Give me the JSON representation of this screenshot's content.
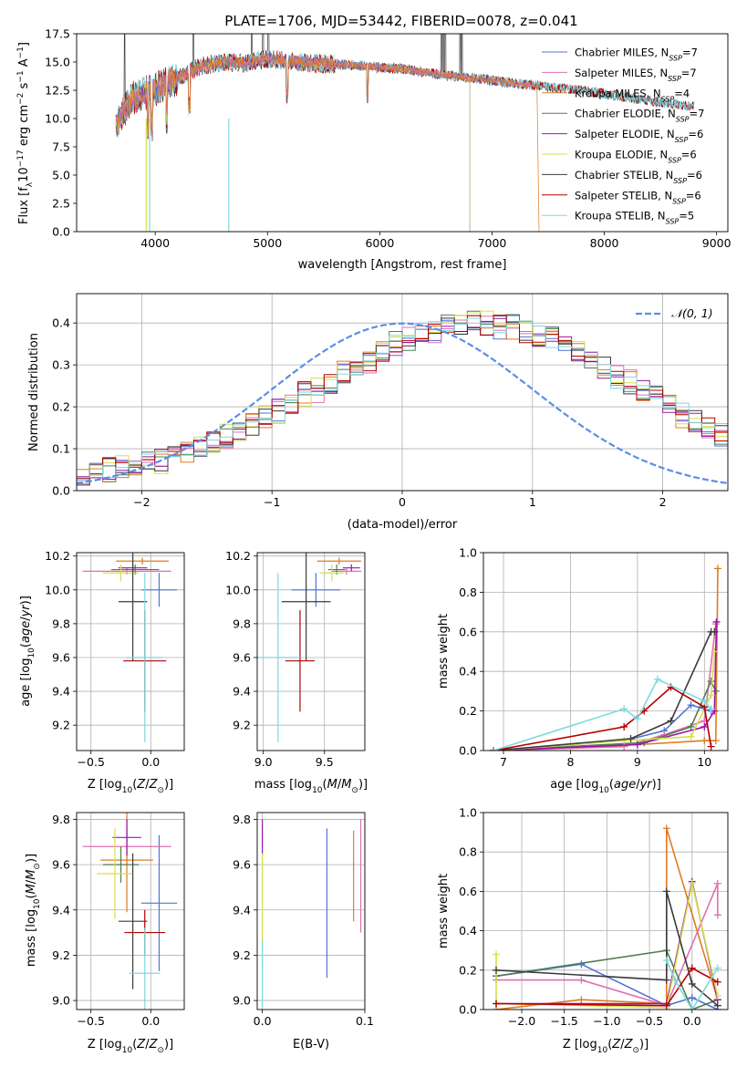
{
  "page_title": "PLATE=1706, MJD=53442, FIBERID=0078, z=0.041",
  "colors": {
    "Chabrier MILES": "#4f73d6",
    "Salpeter MILES": "#e06fb0",
    "Kroupa MILES": "#e07b1f",
    "Chabrier ELODIE": "#4f7d55",
    "Salpeter ELODIE": "#9b16a8",
    "Kroupa ELODIE": "#d4e04a",
    "Chabrier STELIB": "#3b3b3b",
    "Salpeter STELIB": "#b30000",
    "Kroupa STELIB": "#7fd8e0",
    "normal": "#5b8ee6"
  },
  "chart_data": [
    {
      "id": "spectrum",
      "type": "line",
      "title": "PLATE=1706, MJD=53442, FIBERID=0078, z=0.041",
      "xlabel": "wavelength [Angstrom, rest frame]",
      "ylabel": "Flux [f_λ 10^-17 erg cm^-2 s^-1 A^-1]",
      "xlim": [
        3300,
        9100
      ],
      "ylim": [
        0,
        17.5
      ],
      "xticks": [
        4000,
        5000,
        6000,
        7000,
        8000,
        9000
      ],
      "yticks": [
        0.0,
        2.5,
        5.0,
        7.5,
        10.0,
        12.5,
        15.0,
        17.5
      ],
      "grid": false,
      "legend_position": "top-right",
      "x": [
        3650,
        3800,
        4000,
        4200,
        4400,
        4600,
        4800,
        5000,
        5200,
        5400,
        5600,
        5800,
        6000,
        6200,
        6400,
        6600,
        6800,
        7000,
        7200,
        7400,
        7600,
        7800,
        8000,
        8200,
        8400,
        8600,
        8800
      ],
      "y": [
        9.5,
        11.8,
        12.6,
        13.6,
        14.6,
        15.0,
        14.9,
        15.3,
        15.1,
        14.9,
        14.8,
        14.7,
        14.5,
        14.4,
        14.1,
        13.8,
        13.6,
        13.4,
        13.1,
        12.9,
        12.7,
        12.5,
        12.2,
        11.9,
        11.6,
        11.3,
        11.0
      ],
      "series": [
        {
          "name": "Chabrier MILES, N_SSP=7",
          "label_main": "Chabrier MILES, N",
          "label_sub": "SSP",
          "label_end": "=7",
          "xmax": 7400
        },
        {
          "name": "Salpeter MILES, N_SSP=7",
          "label_main": "Salpeter MILES, N",
          "label_sub": "SSP",
          "label_end": "=7",
          "xmax": 7400
        },
        {
          "name": "Kroupa MILES, N_SSP=4",
          "label_main": "Kroupa MILES, N",
          "label_sub": "SSP",
          "label_end": "=4",
          "xmax": 7400
        },
        {
          "name": "Chabrier ELODIE, N_SSP=7",
          "label_main": "Chabrier ELODIE, N",
          "label_sub": "SSP",
          "label_end": "=7",
          "xmax": 6800
        },
        {
          "name": "Salpeter ELODIE, N_SSP=6",
          "label_main": "Salpeter ELODIE, N",
          "label_sub": "SSP",
          "label_end": "=6",
          "xmax": 6800
        },
        {
          "name": "Kroupa ELODIE, N_SSP=6",
          "label_main": "Kroupa ELODIE, N",
          "label_sub": "SSP",
          "label_end": "=6",
          "xmax": 6800
        },
        {
          "name": "Chabrier STELIB, N_SSP=6",
          "label_main": "Chabrier STELIB, N",
          "label_sub": "SSP",
          "label_end": "=6",
          "xmax": 8800
        },
        {
          "name": "Salpeter STELIB, N_SSP=6",
          "label_main": "Salpeter STELIB, N",
          "label_sub": "SSP",
          "label_end": "=6",
          "xmax": 8800
        },
        {
          "name": "Kroupa STELIB, N_SSP=5",
          "label_main": "Kroupa STELIB, N",
          "label_sub": "SSP",
          "label_end": "=5",
          "xmax": 8800
        }
      ]
    },
    {
      "id": "residuals",
      "type": "histogram",
      "xlabel": "(data-model)/error",
      "ylabel": "Normed distribution",
      "xlim": [
        -2.5,
        2.5
      ],
      "ylim": [
        0,
        0.47
      ],
      "xticks": [
        -2,
        -1,
        0,
        1,
        2
      ],
      "xtick_labels": [
        "−2",
        "−1",
        "0",
        "1",
        "2"
      ],
      "yticks": [
        0.0,
        0.1,
        0.2,
        0.3,
        0.4
      ],
      "grid": true,
      "legend_position": "top-right",
      "legend_label": "N(0,1)",
      "bin_width": 0.1,
      "bin_start": -2.5,
      "base_hist": [
        0.04,
        0.05,
        0.05,
        0.06,
        0.06,
        0.07,
        0.07,
        0.08,
        0.09,
        0.1,
        0.11,
        0.13,
        0.14,
        0.16,
        0.18,
        0.19,
        0.21,
        0.23,
        0.24,
        0.26,
        0.28,
        0.3,
        0.31,
        0.33,
        0.35,
        0.36,
        0.37,
        0.38,
        0.39,
        0.4,
        0.4,
        0.4,
        0.39,
        0.39,
        0.38,
        0.37,
        0.36,
        0.34,
        0.33,
        0.31,
        0.29,
        0.27,
        0.26,
        0.24,
        0.22,
        0.2,
        0.18,
        0.17,
        0.15,
        0.13,
        0.12,
        0.1,
        0.09,
        0.08,
        0.07,
        0.06,
        0.05,
        0.04,
        0.04,
        0.03
      ],
      "normal_curve": "N(0,1)"
    },
    {
      "id": "age_vs_Z",
      "type": "errorbar",
      "xlabel": "Z [log10(Z/Z⊙)]",
      "ylabel": "age [log10(age/yr)]",
      "xlim": [
        -0.62,
        0.28
      ],
      "ylim": [
        9.05,
        10.22
      ],
      "xticks": [
        -0.5,
        0.0
      ],
      "xtick_labels": [
        "−0.5",
        "0.0"
      ],
      "yticks": [
        9.2,
        9.4,
        9.6,
        9.8,
        10.0,
        10.2
      ],
      "grid": true,
      "points": [
        {
          "series": "Chabrier MILES",
          "x": 0.07,
          "y": 10.0,
          "xerr": 0.15,
          "yerr": 0.1
        },
        {
          "series": "Salpeter MILES",
          "x": -0.2,
          "y": 10.11,
          "xerr": 0.37,
          "yerr": 0.02
        },
        {
          "series": "Kroupa MILES",
          "x": -0.07,
          "y": 10.17,
          "xerr": 0.22,
          "yerr": 0.02
        },
        {
          "series": "Chabrier ELODIE",
          "x": -0.13,
          "y": 10.12,
          "xerr": 0.2,
          "yerr": 0.03
        },
        {
          "series": "Salpeter ELODIE",
          "x": -0.15,
          "y": 10.13,
          "xerr": 0.12,
          "yerr": 0.02
        },
        {
          "series": "Kroupa ELODIE",
          "x": -0.25,
          "y": 10.1,
          "xerr": 0.15,
          "yerr": 0.05
        },
        {
          "series": "Chabrier STELIB",
          "x": -0.15,
          "y": 9.93,
          "xerr": 0.12,
          "yerr": 0.35
        },
        {
          "series": "Salpeter STELIB",
          "x": -0.05,
          "y": 9.58,
          "xerr": 0.18,
          "yerr": 0.3
        },
        {
          "series": "Kroupa STELIB",
          "x": -0.05,
          "y": 9.6,
          "xerr": 0.15,
          "yerr": 0.5
        }
      ]
    },
    {
      "id": "age_vs_mass",
      "type": "errorbar",
      "xlabel": "mass [log10(M/M⊙)]",
      "xlim": [
        8.95,
        9.83
      ],
      "ylim": [
        9.05,
        10.22
      ],
      "xticks": [
        9.0,
        9.5
      ],
      "yticks": [
        9.2,
        9.4,
        9.6,
        9.8,
        10.0,
        10.2
      ],
      "grid": true,
      "points": [
        {
          "series": "Chabrier MILES",
          "x": 9.43,
          "y": 10.0,
          "xerr": 0.2,
          "yerr": 0.1
        },
        {
          "series": "Salpeter MILES",
          "x": 9.68,
          "y": 10.11,
          "xerr": 0.12,
          "yerr": 0.02
        },
        {
          "series": "Kroupa MILES",
          "x": 9.62,
          "y": 10.17,
          "xerr": 0.18,
          "yerr": 0.02
        },
        {
          "series": "Chabrier ELODIE",
          "x": 9.6,
          "y": 10.12,
          "xerr": 0.07,
          "yerr": 0.03
        },
        {
          "series": "Salpeter ELODIE",
          "x": 9.72,
          "y": 10.13,
          "xerr": 0.07,
          "yerr": 0.02
        },
        {
          "series": "Kroupa ELODIE",
          "x": 9.56,
          "y": 10.1,
          "xerr": 0.1,
          "yerr": 0.05
        },
        {
          "series": "Chabrier STELIB",
          "x": 9.35,
          "y": 9.93,
          "xerr": 0.2,
          "yerr": 0.35
        },
        {
          "series": "Salpeter STELIB",
          "x": 9.3,
          "y": 9.58,
          "xerr": 0.12,
          "yerr": 0.3
        },
        {
          "series": "Kroupa STELIB",
          "x": 9.12,
          "y": 9.6,
          "xerr": 0.18,
          "yerr": 0.5
        }
      ]
    },
    {
      "id": "weight_vs_age",
      "type": "line",
      "xlabel": "age [log10(age/yr)]",
      "ylabel": "mass weight",
      "xlim": [
        6.7,
        10.35
      ],
      "ylim": [
        0,
        1.0
      ],
      "xticks": [
        7,
        8,
        9,
        10
      ],
      "yticks": [
        0.0,
        0.2,
        0.4,
        0.6,
        0.8,
        1.0
      ],
      "grid": true,
      "series": [
        {
          "name": "Chabrier MILES",
          "x": [
            6.85,
            8.8,
            9.4,
            9.8,
            10.1
          ],
          "y": [
            0.0,
            0.05,
            0.1,
            0.23,
            0.2
          ]
        },
        {
          "name": "Salpeter MILES",
          "x": [
            6.85,
            8.8,
            9.4,
            10.0,
            10.17
          ],
          "y": [
            0.0,
            0.02,
            0.08,
            0.15,
            0.64
          ]
        },
        {
          "name": "Kroupa MILES",
          "x": [
            6.85,
            9.0,
            10.0,
            10.17,
            10.2
          ],
          "y": [
            0.0,
            0.03,
            0.05,
            0.05,
            0.92
          ]
        },
        {
          "name": "Chabrier ELODIE",
          "x": [
            6.85,
            9.1,
            9.8,
            10.1,
            10.17
          ],
          "y": [
            0.0,
            0.04,
            0.12,
            0.35,
            0.3
          ]
        },
        {
          "name": "Salpeter ELODIE",
          "x": [
            6.85,
            9.0,
            10.0,
            10.15,
            10.18
          ],
          "y": [
            0.0,
            0.03,
            0.12,
            0.2,
            0.65
          ]
        },
        {
          "name": "Kroupa ELODIE",
          "x": [
            6.85,
            8.8,
            9.8,
            10.1,
            10.15
          ],
          "y": [
            0.0,
            0.05,
            0.07,
            0.28,
            0.5
          ]
        },
        {
          "name": "Chabrier STELIB",
          "x": [
            6.85,
            8.9,
            9.5,
            10.1,
            10.15
          ],
          "y": [
            0.0,
            0.06,
            0.15,
            0.6,
            0.6
          ]
        },
        {
          "name": "Salpeter STELIB",
          "x": [
            6.85,
            8.8,
            9.1,
            9.5,
            10.0,
            10.1
          ],
          "y": [
            0.0,
            0.12,
            0.2,
            0.32,
            0.22,
            0.02
          ]
        },
        {
          "name": "Kroupa STELIB",
          "x": [
            6.85,
            8.8,
            9.0,
            9.3,
            10.0,
            10.1
          ],
          "y": [
            0.0,
            0.21,
            0.16,
            0.36,
            0.25,
            0.21
          ]
        }
      ]
    },
    {
      "id": "mass_vs_Z",
      "type": "errorbar",
      "xlabel": "Z [log10(Z/Z⊙)]",
      "ylabel": "mass [log10(M/M⊙)]",
      "xlim": [
        -0.62,
        0.28
      ],
      "ylim": [
        8.96,
        9.83
      ],
      "xticks": [
        -0.5,
        0.0
      ],
      "xtick_labels": [
        "−0.5",
        "0.0"
      ],
      "yticks": [
        9.0,
        9.2,
        9.4,
        9.6,
        9.8
      ],
      "grid": true,
      "points": [
        {
          "series": "Chabrier MILES",
          "x": 0.07,
          "y": 9.43,
          "xerr": 0.15,
          "yerr": 0.3
        },
        {
          "series": "Salpeter MILES",
          "x": -0.2,
          "y": 9.68,
          "xerr": 0.37,
          "yerr": 0.08
        },
        {
          "series": "Kroupa MILES",
          "x": -0.2,
          "y": 9.62,
          "xerr": 0.22,
          "yerr": 0.23
        },
        {
          "series": "Chabrier ELODIE",
          "x": -0.25,
          "y": 9.6,
          "xerr": 0.15,
          "yerr": 0.08
        },
        {
          "series": "Salpeter ELODIE",
          "x": -0.2,
          "y": 9.72,
          "xerr": 0.12,
          "yerr": 0.08
        },
        {
          "series": "Kroupa ELODIE",
          "x": -0.3,
          "y": 9.56,
          "xerr": 0.15,
          "yerr": 0.2
        },
        {
          "series": "Chabrier STELIB",
          "x": -0.15,
          "y": 9.35,
          "xerr": 0.12,
          "yerr": 0.3
        },
        {
          "series": "Salpeter STELIB",
          "x": -0.05,
          "y": 9.3,
          "xerr": 0.17,
          "yerr": 0.1
        },
        {
          "series": "Kroupa STELIB",
          "x": -0.05,
          "y": 9.12,
          "xerr": 0.13,
          "yerr": 0.2
        }
      ]
    },
    {
      "id": "mass_vs_EBV",
      "type": "errorbar",
      "xlabel": "E(B-V)",
      "xlim": [
        -0.005,
        0.1
      ],
      "ylim": [
        8.96,
        9.83
      ],
      "xticks": [
        0.0,
        0.1
      ],
      "yticks": [
        9.0,
        9.2,
        9.4,
        9.6,
        9.8
      ],
      "grid": true,
      "points": [
        {
          "series": "Chabrier MILES",
          "x": 0.063,
          "y": 9.43,
          "xerr": 0,
          "yerr": 0.33
        },
        {
          "series": "Salpeter MILES",
          "x": 0.096,
          "y": 9.55,
          "xerr": 0,
          "yerr": 0.25
        },
        {
          "series": "Kroupa MILES",
          "x": 0.089,
          "y": 9.55,
          "xerr": 0,
          "yerr": 0.2
        },
        {
          "series": "Salpeter ELODIE",
          "x": 0.0,
          "y": 9.72,
          "xerr": 0,
          "yerr": 0.08
        },
        {
          "series": "Kroupa ELODIE",
          "x": 0.0,
          "y": 9.4,
          "xerr": 0,
          "yerr": 0.25
        },
        {
          "series": "Kroupa STELIB",
          "x": 0.0,
          "y": 9.12,
          "xerr": 0,
          "yerr": 0.15
        }
      ]
    },
    {
      "id": "weight_vs_Z",
      "type": "line",
      "xlabel": "Z [log10(Z/Z⊙)]",
      "ylabel": "mass weight",
      "xlim": [
        -2.45,
        0.42
      ],
      "ylim": [
        0,
        1.0
      ],
      "xticks": [
        -2.0,
        -1.5,
        -1.0,
        -0.5,
        0.0
      ],
      "xtick_labels": [
        "−2.0",
        "−1.5",
        "−1.0",
        "−0.5",
        "0.0"
      ],
      "yticks": [
        0.0,
        0.2,
        0.4,
        0.6,
        0.8,
        1.0
      ],
      "grid": true,
      "series": [
        {
          "name": "Chabrier MILES",
          "x": [
            -2.3,
            -1.3,
            -0.3,
            0.0,
            0.3
          ],
          "y": [
            0.17,
            0.23,
            0.02,
            0.06,
            0.0
          ]
        },
        {
          "name": "Salpeter MILES",
          "x": [
            -2.3,
            -1.3,
            -0.3,
            0.3,
            0.3
          ],
          "y": [
            0.15,
            0.15,
            0.02,
            0.64,
            0.48
          ]
        },
        {
          "name": "Kroupa MILES",
          "x": [
            -2.3,
            -1.3,
            -0.3,
            -0.3,
            0.3
          ],
          "y": [
            0.0,
            0.05,
            0.03,
            0.92,
            0.05
          ]
        },
        {
          "name": "Chabrier ELODIE",
          "x": [
            -2.3,
            -0.3,
            0.0,
            0.3
          ],
          "y": [
            0.17,
            0.3,
            0.0,
            0.05
          ]
        },
        {
          "name": "Salpeter ELODIE",
          "x": [
            -2.3,
            -0.3,
            0.0,
            0.3
          ],
          "y": [
            0.03,
            0.03,
            0.65,
            0.05
          ]
        },
        {
          "name": "Kroupa ELODIE",
          "x": [
            -2.3,
            -2.3,
            -0.3,
            0.0,
            0.3
          ],
          "y": [
            0.28,
            0.03,
            0.01,
            0.64,
            0.07
          ]
        },
        {
          "name": "Chabrier STELIB",
          "x": [
            -2.3,
            -0.3,
            -0.3,
            0.0,
            0.3
          ],
          "y": [
            0.2,
            0.15,
            0.6,
            0.13,
            0.02
          ]
        },
        {
          "name": "Salpeter STELIB",
          "x": [
            -2.3,
            -0.3,
            0.0,
            0.3
          ],
          "y": [
            0.03,
            0.02,
            0.21,
            0.14
          ]
        },
        {
          "name": "Kroupa STELIB",
          "x": [
            -0.3,
            -0.2,
            0.0,
            0.3
          ],
          "y": [
            0.25,
            0.15,
            0.0,
            0.21
          ]
        }
      ]
    }
  ]
}
